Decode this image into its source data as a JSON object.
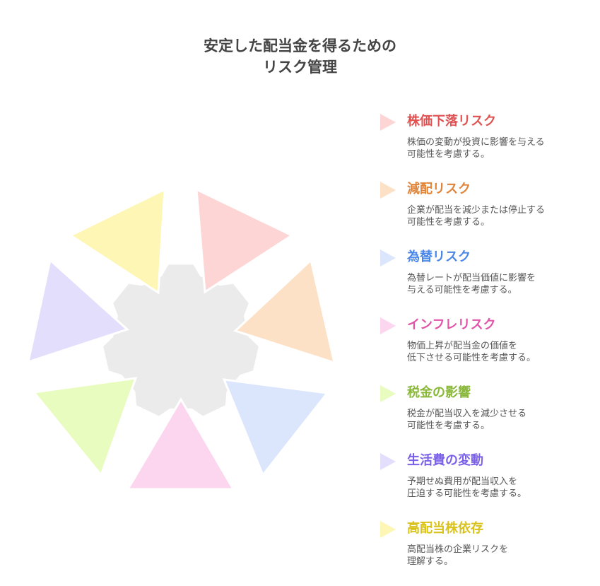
{
  "title": {
    "line1": "安定した配当金を得るための",
    "line2": "リスク管理"
  },
  "center_color": "#ebebeb",
  "items": [
    {
      "heading": "株価下落リスク",
      "desc1": "株価の変動が投資に影響を与える",
      "desc2": "可能性を考慮する。",
      "color": "#e05252",
      "fill": "#fdd5d5"
    },
    {
      "heading": "減配リスク",
      "desc1": "企業が配当を減少または停止する",
      "desc2": "可能性を考慮する。",
      "color": "#e0843a",
      "fill": "#fde1c7"
    },
    {
      "heading": "為替リスク",
      "desc1": "為替レートが配当価値に影響を",
      "desc2": "与える可能性を考慮する。",
      "color": "#4a86e8",
      "fill": "#dbe6fd"
    },
    {
      "heading": "インフレリスク",
      "desc1": "物価上昇が配当金の価値を",
      "desc2": "低下させる可能性を考慮する。",
      "color": "#e055a8",
      "fill": "#fcd5ee"
    },
    {
      "heading": "税金の影響",
      "desc1": "税金が配当収入を減少させる",
      "desc2": "可能性を考慮する。",
      "color": "#8ab83a",
      "fill": "#e8fcc0"
    },
    {
      "heading": "生活費の変動",
      "desc1": "予期せぬ費用が配当収入を",
      "desc2": "圧迫する可能性を考慮する。",
      "color": "#7b61e8",
      "fill": "#e4defd"
    },
    {
      "heading": "高配当株依存",
      "desc1": "高配当株の企業リスクを",
      "desc2": "理解する。",
      "color": "#d9c21c",
      "fill": "#fef6b4"
    }
  ]
}
